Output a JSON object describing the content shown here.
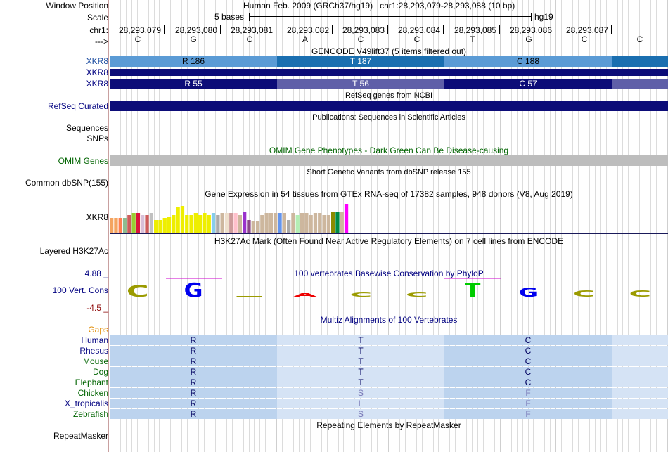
{
  "header": {
    "window_position_label": "Window Position",
    "window_position_value": "Human Feb. 2009 (GRCh37/hg19)   chr1:28,293,079-28,293,088 (10 bp)",
    "scale_label": "Scale",
    "scale_value": "5 bases",
    "assembly": "hg19",
    "chrom_label": "chr1:",
    "strand_label": "--->"
  },
  "ruler": {
    "positions": [
      "28,293,079",
      "28,293,080",
      "28,293,081",
      "28,293,082",
      "28,293,083",
      "28,293,084",
      "28,293,085",
      "28,293,086",
      "28,293,087"
    ],
    "bases": [
      "C",
      "G",
      "C",
      "A",
      "C",
      "C",
      "T",
      "G",
      "C",
      "C"
    ]
  },
  "gencode": {
    "title": "GENCODE V49lift37 (5 items filtered out)",
    "row1_label": "XKR8",
    "row1_codons": [
      "R 186",
      "T 187",
      "C 188"
    ],
    "row2_label": "XKR8",
    "row3_label": "XKR8",
    "row3_codons": [
      "R 55",
      "T 56",
      "C 57"
    ]
  },
  "refseq": {
    "title": "RefSeq genes from NCBI",
    "label": "RefSeq Curated"
  },
  "publications": {
    "title": "Publications: Sequences in Scientific Articles",
    "label1": "Sequences",
    "label2": "SNPs"
  },
  "omim": {
    "title": "OMIM Gene Phenotypes - Dark Green Can Be Disease-causing",
    "label": "OMIM Genes"
  },
  "dbsnp": {
    "title": "Short Genetic Variants from dbSNP release 155",
    "label": "Common dbSNP(155)"
  },
  "gtex": {
    "title": "Gene Expression in 54 tissues from GTEx RNA-seq of 17382 samples, 948 donors (V8, Aug 2019)",
    "label": "XKR8",
    "bar_values": [
      0.45,
      0.45,
      0.45,
      0.45,
      0.55,
      0.6,
      0.6,
      0.55,
      0.55,
      0.6,
      0.4,
      0.4,
      0.45,
      0.5,
      0.55,
      0.8,
      0.82,
      0.55,
      0.55,
      0.6,
      0.55,
      0.6,
      0.55,
      0.6,
      0.55,
      0.6,
      0.6,
      0.6,
      0.6,
      0.55,
      0.65,
      0.4,
      0.35,
      0.35,
      0.55,
      0.6,
      0.6,
      0.6,
      0.6,
      0.6,
      0.4,
      0.6,
      0.55,
      0.6,
      0.6,
      0.55,
      0.6,
      0.6,
      0.55,
      0.55,
      0.65,
      0.65,
      0.65,
      0.9
    ],
    "bar_colors": [
      "#f4a460",
      "#f4a460",
      "#ff7f50",
      "#8fbc8f",
      "#cd5c5c",
      "#9acd32",
      "#dc143c",
      "#d8bfd8",
      "#cd5c5c",
      "#c0c0c0",
      "#eeee00",
      "#eeee00",
      "#eeee00",
      "#eeee00",
      "#eeee00",
      "#eeee00",
      "#eeee00",
      "#eeee00",
      "#eeee00",
      "#eeee00",
      "#eeee00",
      "#eeee00",
      "#eeee00",
      "#87ceeb",
      "#aaaaaa",
      "#cdb79e",
      "#eedfcc",
      "#cd9b9b",
      "#ffc0cb",
      "#cdb79e",
      "#9932cc",
      "#8b4789",
      "#cdb79e",
      "#cdb79e",
      "#cdb79e",
      "#cdb79e",
      "#cdb79e",
      "#cdb79e",
      "#6495ed",
      "#cdb79e",
      "#aaaaaa",
      "#cdb79e",
      "#b4eeb4",
      "#cdb79e",
      "#cdb79e",
      "#cdb79e",
      "#cdb79e",
      "#cdb79e",
      "#cdb79e",
      "#cdb79e",
      "#8b8b00",
      "#008b45",
      "#cdb79e",
      "#ff00ff"
    ]
  },
  "h3k27ac": {
    "title": "H3K27Ac Mark (Often Found Near Active Regulatory Elements) on 7 cell lines from ENCODE",
    "label": "Layered H3K27Ac"
  },
  "conservation": {
    "title": "100 vertebrates Basewise Conservation by PhyloP",
    "label": "100 Vert. Cons",
    "max": "4.88 _",
    "min": "-4.5 _",
    "letters": [
      {
        "base": "C",
        "value": 0.45,
        "color": "#9b9b00"
      },
      {
        "base": "G",
        "value": 0.55,
        "color": "#0000ee"
      },
      {
        "base": "-",
        "value": 0.05,
        "color": "#9b9b00"
      },
      {
        "base": "A",
        "value": 0.15,
        "color": "#ee0000"
      },
      {
        "base": "C",
        "value": 0.18,
        "color": "#9b9b00"
      },
      {
        "base": "C",
        "value": 0.18,
        "color": "#9b9b00"
      },
      {
        "base": "T",
        "value": 0.55,
        "color": "#00cc00"
      },
      {
        "base": "G",
        "value": 0.35,
        "color": "#0000ee"
      },
      {
        "base": "C",
        "value": 0.25,
        "color": "#9b9b00"
      },
      {
        "base": "C",
        "value": 0.25,
        "color": "#9b9b00"
      }
    ]
  },
  "multiz": {
    "title": "Multiz Alignments of 100 Vertebrates",
    "gaps_label": "Gaps",
    "species": [
      {
        "name": "Human",
        "color": "#000080",
        "aa": [
          "R",
          "T",
          "C"
        ],
        "faded": [
          false,
          false,
          false
        ]
      },
      {
        "name": "Rhesus",
        "color": "#000080",
        "aa": [
          "R",
          "T",
          "C"
        ],
        "faded": [
          false,
          false,
          false
        ]
      },
      {
        "name": "Mouse",
        "color": "#006400",
        "aa": [
          "R",
          "T",
          "C"
        ],
        "faded": [
          false,
          false,
          false
        ]
      },
      {
        "name": "Dog",
        "color": "#006400",
        "aa": [
          "R",
          "T",
          "C"
        ],
        "faded": [
          false,
          false,
          false
        ]
      },
      {
        "name": "Elephant",
        "color": "#006400",
        "aa": [
          "R",
          "T",
          "C"
        ],
        "faded": [
          false,
          false,
          false
        ]
      },
      {
        "name": "Chicken",
        "color": "#006400",
        "aa": [
          "R",
          "S",
          "F"
        ],
        "faded": [
          false,
          true,
          true
        ]
      },
      {
        "name": "X_tropicalis",
        "color": "#000080",
        "aa": [
          "R",
          "L",
          "F"
        ],
        "faded": [
          false,
          true,
          true
        ]
      },
      {
        "name": "Zebrafish",
        "color": "#006400",
        "aa": [
          "R",
          "S",
          "F"
        ],
        "faded": [
          false,
          true,
          true
        ]
      }
    ]
  },
  "repeatmasker": {
    "title": "Repeating Elements by RepeatMasker",
    "label": "RepeatMasker"
  },
  "colors": {
    "gencode_light": "#5b9bd5",
    "gencode_dark": "#1a6fb0",
    "refseq_dark": "#0c0c78",
    "refseq_light": "#5f5fa8",
    "omim_gray": "#bdbdbd",
    "multiz_light": "#bcd3ee",
    "multiz_lighter": "#d5e3f5",
    "label_blue": "#1c4ca0",
    "label_navy": "#000080",
    "label_green": "#006400",
    "label_orange": "#e08a00"
  }
}
